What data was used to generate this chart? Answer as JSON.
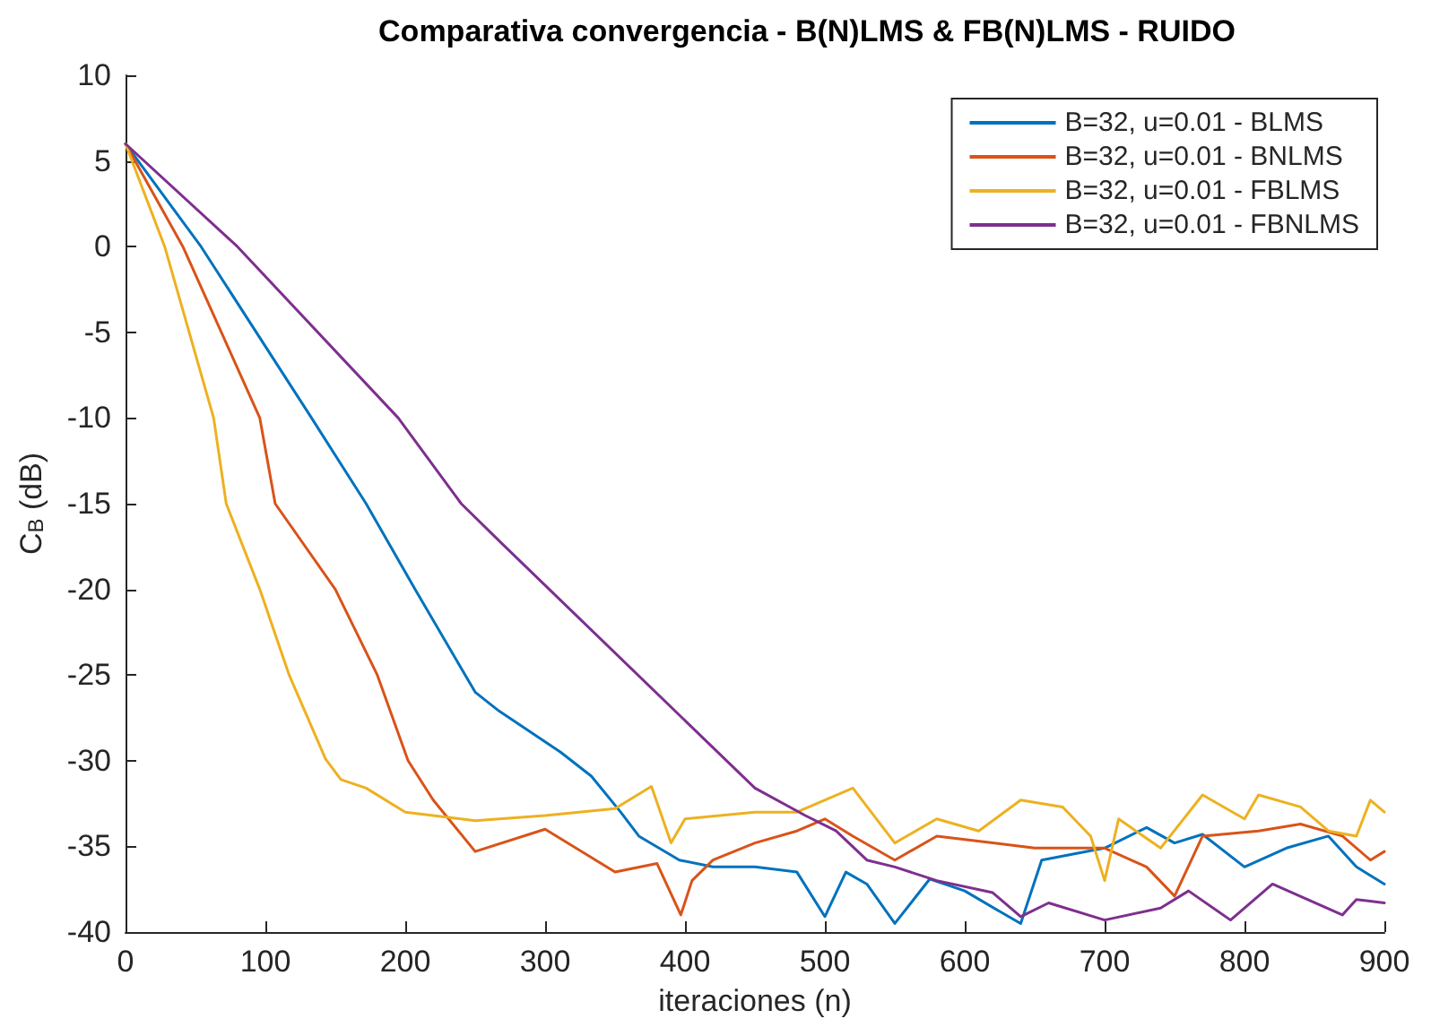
{
  "chart_data": {
    "type": "line",
    "title": "Comparativa convergencia - B(N)LMS & FB(N)LMS - RUIDO",
    "xlabel": "iteraciones (n)",
    "ylabel": "C$_{B}$ (dB)",
    "xlim": [
      0,
      900
    ],
    "xticks": [
      0,
      100,
      200,
      300,
      400,
      500,
      600,
      700,
      800,
      900
    ],
    "ylim": [
      -40,
      10
    ],
    "yticks": [
      -40,
      -35,
      -30,
      -25,
      -20,
      -15,
      -10,
      -5,
      0,
      5,
      10
    ],
    "grid": false,
    "legend": "top right",
    "marker": "none",
    "line_style": "solid",
    "series": [
      {
        "name": "B=32, u=0.01 - BLMS",
        "color": "#0072bd",
        "x": [
          0,
          54,
          133,
          172,
          207,
          250,
          267,
          311,
          333,
          354,
          367,
          396,
          420,
          450,
          480,
          500,
          515,
          530,
          550,
          575,
          600,
          625,
          640,
          655,
          700,
          730,
          750,
          770,
          800,
          830,
          860,
          880,
          900
        ],
        "values": [
          6,
          0,
          -10,
          -15,
          -20,
          -26,
          -27.1,
          -29.5,
          -30.9,
          -33,
          -34.4,
          -35.8,
          -36.2,
          -36.2,
          -36.5,
          -39.1,
          -36.5,
          -37.2,
          -39.5,
          -36.9,
          -37.6,
          -38.8,
          -39.5,
          -35.8,
          -35.1,
          -33.9,
          -34.8,
          -34.3,
          -36.2,
          -35.1,
          -34.4,
          -36.2,
          -37.2
        ]
      },
      {
        "name": "B=32, u=0.01 - BNLMS",
        "color": "#d95319",
        "x": [
          0,
          41,
          96,
          107,
          150,
          180,
          202,
          220,
          250,
          300,
          350,
          380,
          397,
          405,
          420,
          450,
          480,
          500,
          520,
          550,
          580,
          620,
          650,
          700,
          730,
          750,
          770,
          810,
          840,
          870,
          890,
          900
        ],
        "values": [
          6,
          0,
          -10,
          -15,
          -20,
          -25,
          -30,
          -32.3,
          -35.3,
          -34,
          -36.5,
          -36,
          -39,
          -37,
          -35.8,
          -34.8,
          -34.1,
          -33.4,
          -34.4,
          -35.8,
          -34.4,
          -34.8,
          -35.1,
          -35.1,
          -36.2,
          -37.9,
          -34.4,
          -34.1,
          -33.7,
          -34.4,
          -35.8,
          -35.3
        ]
      },
      {
        "name": "B=32, u=0.01 - FBLMS",
        "color": "#edb120",
        "x": [
          0,
          28,
          63,
          72,
          96,
          117,
          143,
          154,
          172,
          200,
          250,
          300,
          350,
          376,
          390,
          400,
          450,
          480,
          520,
          550,
          580,
          610,
          640,
          670,
          690,
          700,
          710,
          740,
          770,
          800,
          810,
          840,
          860,
          880,
          890,
          900
        ],
        "values": [
          6,
          0,
          -10,
          -15,
          -20,
          -25,
          -29.9,
          -31.1,
          -31.6,
          -33,
          -33.5,
          -33.2,
          -32.8,
          -31.5,
          -34.8,
          -33.4,
          -33,
          -33,
          -31.6,
          -34.8,
          -33.4,
          -34.1,
          -32.3,
          -32.7,
          -34.4,
          -37,
          -33.4,
          -35.1,
          -32,
          -33.4,
          -32,
          -32.7,
          -34.1,
          -34.4,
          -32.3,
          -33
        ]
      },
      {
        "name": "B=32, u=0.01 - FBNLMS",
        "color": "#7e2f8e",
        "x": [
          0,
          80,
          195,
          240,
          270,
          398,
          450,
          486,
          508,
          530,
          550,
          580,
          620,
          640,
          660,
          700,
          740,
          760,
          790,
          820,
          870,
          880,
          900
        ],
        "values": [
          6,
          0,
          -10,
          -15,
          -17.4,
          -27.5,
          -31.6,
          -33.2,
          -34.1,
          -35.8,
          -36.2,
          -37,
          -37.7,
          -39.1,
          -38.3,
          -39.3,
          -38.6,
          -37.6,
          -39.3,
          -37.2,
          -39,
          -38.1,
          -38.3
        ]
      }
    ]
  }
}
